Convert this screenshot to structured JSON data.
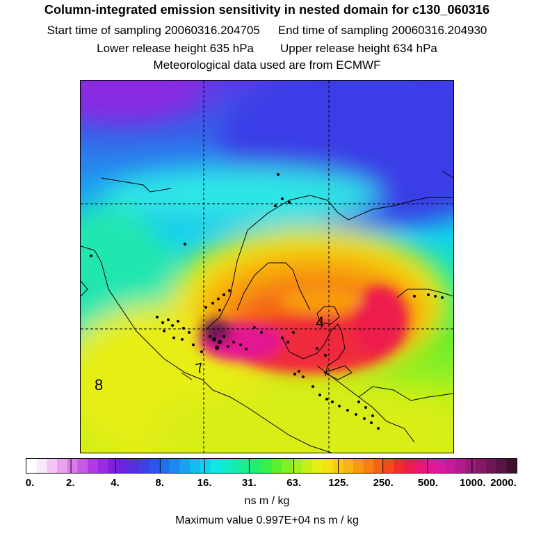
{
  "header": {
    "title": "Column-integrated emission sensitivity in nested domain for c130_060316",
    "start_label": "Start time of sampling 20060316.204705",
    "end_label": "End time of sampling 20060316.204930",
    "lower_label": "Lower release height  635 hPa",
    "upper_label": "Upper release height  634 hPa",
    "met_label": "Meteorological data used are from ECMWF"
  },
  "map": {
    "contour_labels": [
      "4",
      "7",
      "8"
    ],
    "gridlines": "dashed"
  },
  "colorbar": {
    "tick_labels": [
      "0.",
      "2.",
      "4.",
      "8.",
      "16.",
      "31.",
      "63.",
      "125.",
      "250.",
      "500.",
      "1000.",
      "2000."
    ],
    "colors": [
      "#ffffff",
      "#fbe8fb",
      "#f4c4f6",
      "#eaa2f0",
      "#d97ce9",
      "#c65ae6",
      "#b23ae6",
      "#9a2ae4",
      "#7f20e0",
      "#6a24e0",
      "#5430e4",
      "#3e40e8",
      "#2a56ec",
      "#2070f0",
      "#1e88f2",
      "#18a2f0",
      "#12bcee",
      "#10d2ec",
      "#10e6e6",
      "#10eccc",
      "#14eeac",
      "#18ee8c",
      "#20ee6c",
      "#38ee48",
      "#5cee30",
      "#80f024",
      "#a4f01e",
      "#c8f018",
      "#e6ee14",
      "#f6e012",
      "#facc10",
      "#fab410",
      "#f89a10",
      "#f68010",
      "#f46414",
      "#f24a1c",
      "#f02c2c",
      "#ee1c4c",
      "#ea1670",
      "#e41890",
      "#d81aa0",
      "#c61c9c",
      "#b21c8c",
      "#9c1a7a",
      "#861868",
      "#6e1656",
      "#581444",
      "#401030"
    ],
    "units": "ns m / kg"
  },
  "footer": {
    "max_label": "Maximum value  0.997E+04 ns m / kg"
  }
}
